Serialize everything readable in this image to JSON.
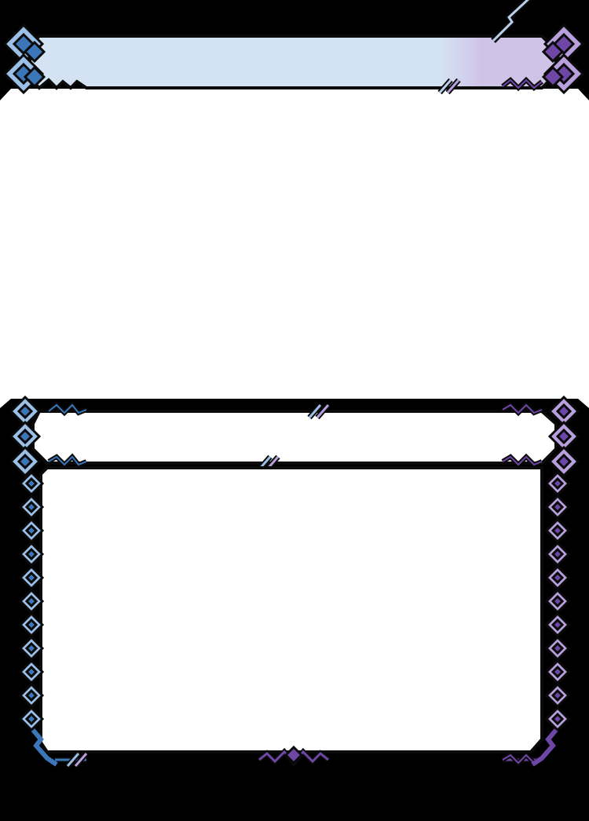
{
  "card": {
    "name": "",
    "type_line": "",
    "rules_text": ""
  },
  "colors": {
    "background": "#000000",
    "panel_fill": "#ffffff",
    "title_fill": "#d4e3f4",
    "title_fill_accent": "#cfc3e8",
    "blue_dark": "#3a76b8",
    "blue_light": "#9bbfe6",
    "purple_dark": "#6e47a6",
    "purple_light": "#b7a0dc",
    "outline": "#0a0a0a"
  },
  "icons": {
    "frame_left": "diamond-zigzag-blue",
    "frame_right": "diamond-zigzag-purple",
    "divider_mark": "double-slash-mark",
    "bottom_mark": "zigzag-crest-mark"
  }
}
